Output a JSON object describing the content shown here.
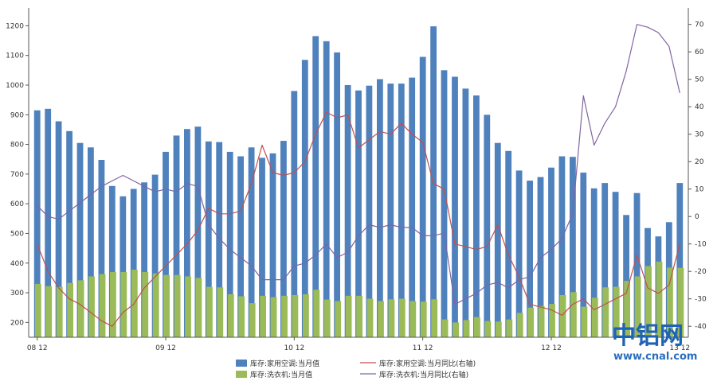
{
  "chart_data": {
    "type": "bar",
    "categories": [
      "08 12",
      "",
      "",
      "",
      "",
      "",
      "",
      "",
      "",
      "",
      "",
      "",
      "09 12",
      "",
      "",
      "",
      "",
      "",
      "",
      "",
      "",
      "",
      "",
      "",
      "10 12",
      "",
      "",
      "",
      "",
      "",
      "",
      "",
      "",
      "",
      "",
      "",
      "11 12",
      "",
      "",
      "",
      "",
      "",
      "",
      "",
      "",
      "",
      "",
      "",
      "12 12",
      "",
      "",
      "",
      "",
      "",
      "",
      "",
      "",
      "",
      "",
      "",
      "13 12"
    ],
    "x_tick_labels": [
      "08 12",
      "09 12",
      "10 12",
      "11 12",
      "12 12",
      "13 12"
    ],
    "y_left": {
      "ticks": [
        200,
        300,
        400,
        500,
        600,
        700,
        800,
        900,
        1000,
        1100,
        1200
      ],
      "range": [
        150,
        1260
      ]
    },
    "y_right": {
      "ticks": [
        -40,
        -30,
        -20,
        -10,
        0,
        10,
        20,
        30,
        40,
        50,
        60,
        70
      ],
      "range": [
        -44,
        76
      ]
    },
    "series": [
      {
        "name": "库存:家用空调:当月值",
        "kind": "bar",
        "axis": "left",
        "color": "#4f81bd",
        "values": [
          915,
          920,
          878,
          845,
          805,
          790,
          748,
          660,
          625,
          650,
          672,
          698,
          775,
          830,
          852,
          860,
          810,
          808,
          775,
          760,
          790,
          755,
          770,
          812,
          980,
          1085,
          1165,
          1148,
          1110,
          1000,
          982,
          998,
          1020,
          1005,
          1005,
          1025,
          1095,
          1198,
          1050,
          1028,
          988,
          965,
          900,
          805,
          778,
          712,
          678,
          690,
          722,
          760,
          758,
          705,
          652,
          670,
          640,
          562,
          636,
          518,
          490,
          538,
          670
        ]
      },
      {
        "name": "库存:洗衣机:当月值",
        "kind": "bar",
        "axis": "left",
        "color": "#9bbb59",
        "values": [
          330,
          322,
          320,
          333,
          342,
          355,
          363,
          370,
          370,
          378,
          370,
          365,
          360,
          360,
          355,
          350,
          320,
          318,
          295,
          288,
          265,
          290,
          285,
          290,
          292,
          295,
          310,
          277,
          272,
          290,
          290,
          280,
          272,
          278,
          280,
          272,
          270,
          278,
          210,
          200,
          208,
          218,
          205,
          203,
          210,
          232,
          250,
          255,
          262,
          292,
          302,
          253,
          283,
          318,
          320,
          340,
          355,
          390,
          405,
          385,
          384
        ]
      },
      {
        "name": "库存:家用空调:当月同比(右轴)",
        "kind": "line",
        "axis": "right",
        "color": "#c0504d",
        "values": [
          -10,
          -20,
          -26,
          -30,
          -32,
          -35,
          -38,
          -40,
          -35,
          -32,
          -26,
          -22,
          -18,
          -14,
          -10,
          -5,
          3,
          1,
          1,
          2,
          12,
          26,
          16,
          15,
          16,
          20,
          30,
          38,
          36,
          37,
          25,
          28,
          31,
          30,
          34,
          30,
          27,
          12,
          10,
          -10,
          -11,
          -12,
          -11,
          -3,
          -14,
          -22,
          -32,
          -33,
          -34,
          -36,
          -32,
          -30,
          -34,
          -32,
          -30,
          -28,
          -14,
          -26,
          -28,
          -25,
          -10
        ]
      },
      {
        "name": "库存:洗衣机:当月同比(右轴)",
        "kind": "line",
        "axis": "right",
        "color": "#8064a2",
        "values": [
          4,
          0,
          -1,
          2,
          5,
          8,
          11,
          13,
          15,
          13,
          11,
          9,
          10,
          9,
          12,
          11,
          -3,
          -8,
          -12,
          -15,
          -18,
          -23,
          -23,
          -23,
          -18,
          -17,
          -14,
          -10,
          -15,
          -13,
          -7,
          -3,
          -4,
          -3,
          -4,
          -4,
          -7,
          -7,
          -6,
          -32,
          -30,
          -28,
          -25,
          -24,
          -26,
          -23,
          -22,
          -15,
          -12,
          -8,
          1,
          44,
          26,
          34,
          40,
          53,
          70,
          69,
          67,
          62,
          45
        ]
      }
    ],
    "title": "",
    "xlabel": "",
    "ylabel": "",
    "grid": false,
    "legend_position": "bottom"
  },
  "legend": {
    "items": [
      "库存:家用空调:当月值",
      "库存:家用空调:当月同比(右轴)",
      "库存:洗衣机:当月值",
      "库存:洗衣机:当月同比(右轴)"
    ]
  },
  "watermark": {
    "name": "中铝网",
    "url": "www.cnal.com"
  }
}
